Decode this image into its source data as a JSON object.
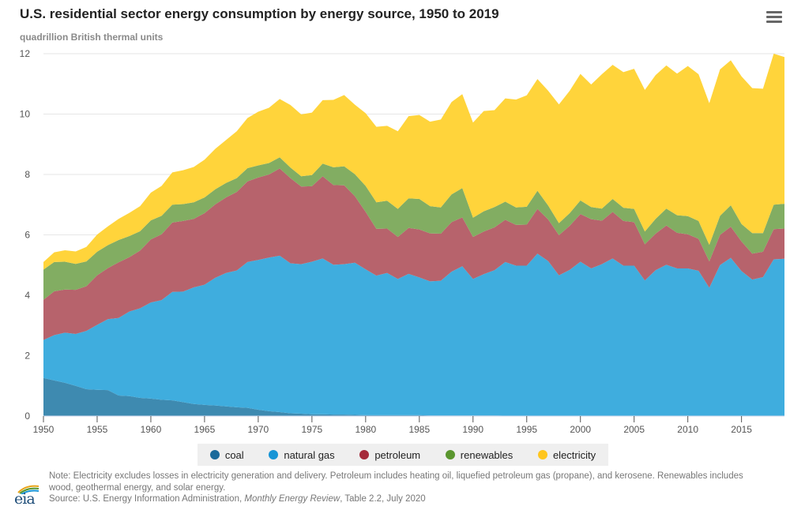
{
  "header": {
    "title": "U.S. residential sector energy consumption by energy source, 1950 to 2019",
    "subtitle": "quadrillion British thermal units",
    "menu_icon": "hamburger-menu-icon"
  },
  "legend": [
    {
      "key": "coal",
      "label": "coal",
      "color": "#1a6a9a"
    },
    {
      "key": "natural_gas",
      "label": "natural gas",
      "color": "#1795d6"
    },
    {
      "key": "petroleum",
      "label": "petroleum",
      "color": "#a52a3a"
    },
    {
      "key": "renewables",
      "label": "renewables",
      "color": "#5a962e"
    },
    {
      "key": "electricity",
      "label": "electricity",
      "color": "#ffc61e"
    }
  ],
  "footer": {
    "note": "Note: Electricity excludes losses in electricity generation and delivery. Petroleum includes heating oil, liquefied petroleum gas (propane), and kerosene. Renewables includes wood, geothermal energy, and solar energy.",
    "source_prefix": "Source: U.S. Energy Information Administration, ",
    "source_italic": "Monthly Energy Review",
    "source_suffix": ", Table 2.2, July 2020",
    "logo_text": "eia"
  },
  "chart_data": {
    "type": "area",
    "stacked": true,
    "title": "U.S. residential sector energy consumption by energy source, 1950 to 2019",
    "ylabel": "quadrillion British thermal units",
    "xlabel": "",
    "xlim": [
      1950,
      2019
    ],
    "ylim": [
      0,
      12
    ],
    "yticks": [
      0,
      2,
      4,
      6,
      8,
      10,
      12
    ],
    "xticks": [
      1950,
      1955,
      1960,
      1965,
      1970,
      1975,
      1980,
      1985,
      1990,
      1995,
      2000,
      2005,
      2010,
      2015
    ],
    "grid": true,
    "legend_position": "bottom",
    "x": [
      1950,
      1951,
      1952,
      1953,
      1954,
      1955,
      1956,
      1957,
      1958,
      1959,
      1960,
      1961,
      1962,
      1963,
      1964,
      1965,
      1966,
      1967,
      1968,
      1969,
      1970,
      1971,
      1972,
      1973,
      1974,
      1975,
      1976,
      1977,
      1978,
      1979,
      1980,
      1981,
      1982,
      1983,
      1984,
      1985,
      1986,
      1987,
      1988,
      1989,
      1990,
      1991,
      1992,
      1993,
      1994,
      1995,
      1996,
      1997,
      1998,
      1999,
      2000,
      2001,
      2002,
      2003,
      2004,
      2005,
      2006,
      2007,
      2008,
      2009,
      2010,
      2011,
      2012,
      2013,
      2014,
      2015,
      2016,
      2017,
      2018,
      2019
    ],
    "series": [
      {
        "name": "coal",
        "values": [
          1.26,
          1.18,
          1.1,
          1.0,
          0.89,
          0.87,
          0.86,
          0.68,
          0.66,
          0.6,
          0.58,
          0.54,
          0.52,
          0.46,
          0.4,
          0.37,
          0.35,
          0.32,
          0.29,
          0.27,
          0.21,
          0.16,
          0.13,
          0.09,
          0.08,
          0.06,
          0.06,
          0.05,
          0.05,
          0.04,
          0.03,
          0.03,
          0.03,
          0.03,
          0.03,
          0.03,
          0.02,
          0.02,
          0.02,
          0.02,
          0.02,
          0.02,
          0.02,
          0.01,
          0.01,
          0.01,
          0.01,
          0.01,
          0.01,
          0.01,
          0.01,
          0.01,
          0.01,
          0.01,
          0.01,
          0.01,
          0.01,
          0.01,
          0.01,
          0.01,
          0.01,
          0.01,
          0.01,
          0.01,
          0.01,
          0.01,
          0.01,
          0.01,
          0.01,
          0.01
        ]
      },
      {
        "name": "natural gas",
        "values": [
          1.26,
          1.5,
          1.66,
          1.72,
          1.93,
          2.15,
          2.35,
          2.57,
          2.8,
          2.97,
          3.18,
          3.3,
          3.59,
          3.66,
          3.86,
          3.98,
          4.23,
          4.42,
          4.53,
          4.83,
          4.96,
          5.09,
          5.18,
          4.97,
          4.95,
          5.05,
          5.16,
          4.96,
          4.98,
          5.04,
          4.83,
          4.62,
          4.71,
          4.51,
          4.68,
          4.56,
          4.44,
          4.46,
          4.76,
          4.94,
          4.52,
          4.68,
          4.81,
          5.09,
          4.97,
          4.97,
          5.37,
          5.12,
          4.65,
          4.83,
          5.1,
          4.88,
          5.02,
          5.21,
          4.97,
          4.97,
          4.48,
          4.82,
          5.0,
          4.88,
          4.88,
          4.8,
          4.24,
          4.99,
          5.23,
          4.79,
          4.51,
          4.59,
          5.18,
          5.2
        ]
      },
      {
        "name": "petroleum",
        "values": [
          1.33,
          1.45,
          1.43,
          1.46,
          1.48,
          1.64,
          1.69,
          1.84,
          1.8,
          1.91,
          2.09,
          2.18,
          2.3,
          2.34,
          2.27,
          2.37,
          2.43,
          2.5,
          2.6,
          2.67,
          2.73,
          2.75,
          2.89,
          2.82,
          2.57,
          2.5,
          2.72,
          2.64,
          2.61,
          2.2,
          1.9,
          1.55,
          1.47,
          1.39,
          1.52,
          1.59,
          1.59,
          1.56,
          1.64,
          1.62,
          1.39,
          1.41,
          1.42,
          1.4,
          1.35,
          1.36,
          1.48,
          1.38,
          1.33,
          1.46,
          1.58,
          1.63,
          1.44,
          1.54,
          1.48,
          1.44,
          1.2,
          1.21,
          1.3,
          1.18,
          1.13,
          1.06,
          0.87,
          1.0,
          1.03,
          0.98,
          0.86,
          0.84,
          1.0,
          1.0
        ]
      },
      {
        "name": "renewables",
        "values": [
          1.0,
          0.97,
          0.92,
          0.86,
          0.82,
          0.78,
          0.76,
          0.74,
          0.7,
          0.64,
          0.63,
          0.61,
          0.59,
          0.56,
          0.55,
          0.52,
          0.5,
          0.48,
          0.46,
          0.44,
          0.4,
          0.38,
          0.37,
          0.35,
          0.34,
          0.37,
          0.42,
          0.59,
          0.63,
          0.73,
          0.86,
          0.88,
          0.92,
          0.93,
          0.98,
          1.01,
          0.9,
          0.87,
          0.92,
          0.97,
          0.64,
          0.67,
          0.67,
          0.6,
          0.58,
          0.59,
          0.6,
          0.46,
          0.4,
          0.42,
          0.45,
          0.4,
          0.4,
          0.43,
          0.44,
          0.44,
          0.42,
          0.49,
          0.56,
          0.58,
          0.6,
          0.59,
          0.55,
          0.63,
          0.71,
          0.58,
          0.68,
          0.62,
          0.81,
          0.82
        ]
      },
      {
        "name": "electricity",
        "values": [
          0.25,
          0.32,
          0.38,
          0.41,
          0.48,
          0.57,
          0.62,
          0.7,
          0.77,
          0.83,
          0.92,
          0.99,
          1.07,
          1.12,
          1.17,
          1.25,
          1.34,
          1.42,
          1.55,
          1.66,
          1.78,
          1.83,
          1.93,
          2.07,
          2.05,
          2.07,
          2.1,
          2.23,
          2.36,
          2.3,
          2.41,
          2.5,
          2.48,
          2.57,
          2.72,
          2.78,
          2.8,
          2.91,
          3.06,
          3.11,
          3.15,
          3.32,
          3.21,
          3.42,
          3.57,
          3.69,
          3.7,
          3.8,
          3.93,
          4.05,
          4.19,
          4.06,
          4.45,
          4.44,
          4.49,
          4.64,
          4.69,
          4.76,
          4.74,
          4.69,
          4.97,
          4.86,
          4.69,
          4.85,
          4.8,
          4.89,
          4.8,
          4.78,
          5.0,
          4.86
        ]
      }
    ]
  }
}
